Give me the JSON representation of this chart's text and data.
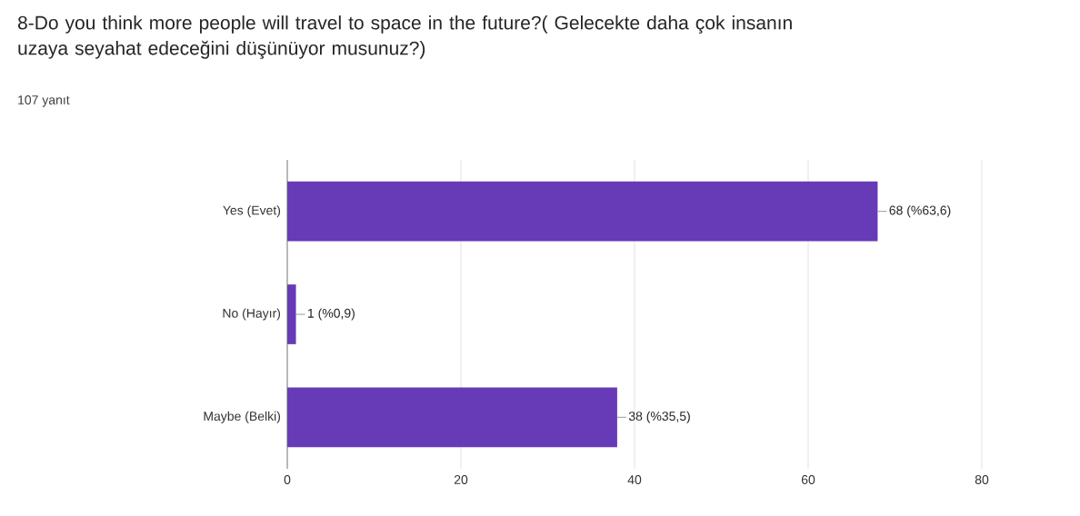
{
  "chart_data": {
    "type": "bar",
    "orientation": "horizontal",
    "title": "8-Do you think more people will travel to space in the future?( Gelecekte daha çok insanın uzaya seyahat edeceğini düşünüyor musunuz?)",
    "subtitle": "107 yanıt",
    "categories": [
      "Yes (Evet)",
      "No (Hayır)",
      "Maybe (Belki)"
    ],
    "values": [
      68,
      1,
      38
    ],
    "value_labels": [
      "68 (%63,6)",
      "1 (%0,9)",
      "38 (%35,5)"
    ],
    "color": "#673ab7",
    "xlim": [
      0,
      80
    ],
    "xticks": [
      0,
      20,
      40,
      60,
      80
    ],
    "grid": "x"
  }
}
